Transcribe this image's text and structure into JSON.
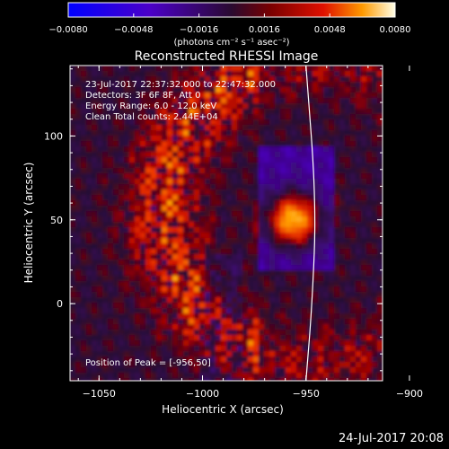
{
  "chart_data": {
    "type": "heatmap",
    "title": "Reconstructed RHESSI Image",
    "xlabel": "Heliocentric X (arcsec)",
    "ylabel": "Heliocentric Y (arcsec)",
    "xlim": [
      -1064,
      -913
    ],
    "ylim": [
      -46,
      142
    ],
    "x_ticks": [
      "−1050",
      "−1000",
      "−950",
      "−900"
    ],
    "x_tick_values": [
      -1050,
      -1000,
      -950,
      -900
    ],
    "y_ticks": [
      "100",
      "50",
      "0"
    ],
    "y_tick_values": [
      100,
      50,
      0
    ],
    "colorbar": {
      "range": [
        -0.008,
        0.008
      ],
      "ticks": [
        "−0.0080",
        "−0.0048",
        "−0.0016",
        "0.0016",
        "0.0048",
        "0.0080"
      ],
      "tick_values": [
        -0.008,
        -0.0048,
        -0.0016,
        0.0016,
        0.0048,
        0.008
      ],
      "units": "(photons cm⁻² s⁻¹ asec⁻²)"
    },
    "annotations": [
      "23-Jul-2017 22:37:32.000 to 22:47:32.000",
      "Detectors: 3F 6F 8F, Att 0",
      "Energy Range: 6.0 - 12.0 keV",
      "Clean      Total counts: 2.44E+04"
    ],
    "peak_label": "Position of Peak = [-956,50]",
    "peak": {
      "x": -956,
      "y": 50,
      "value": 0.008
    },
    "limb_curve": [
      [
        -950,
        142
      ],
      [
        -945,
        60
      ],
      [
        -947,
        0
      ],
      [
        -950,
        -46
      ]
    ]
  },
  "footer_date": "24-Jul-2017 20:08"
}
